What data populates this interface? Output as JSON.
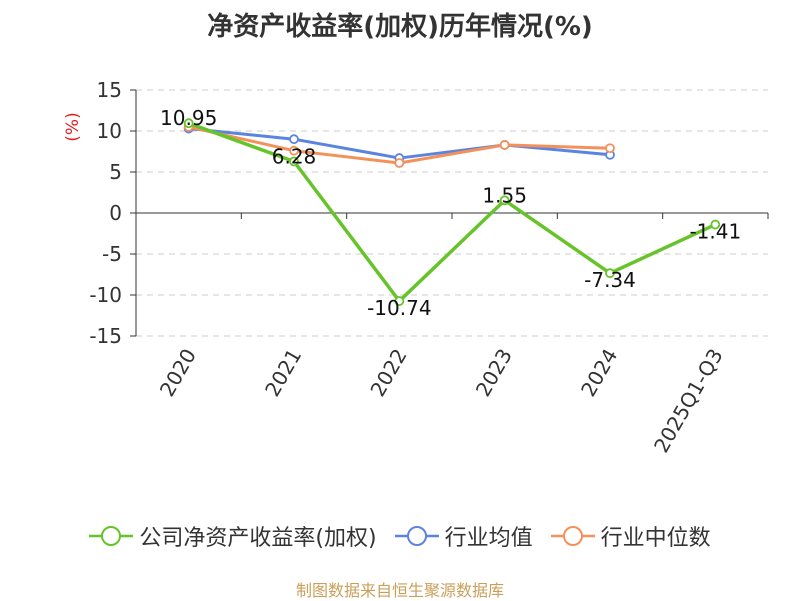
{
  "colors": {
    "company": "#66c42a",
    "industry_avg": "#5b84e0",
    "industry_median": "#f4915a",
    "axis": "#333333",
    "grid": "#cccccc",
    "ylabel": "#e02020",
    "source": "#c9a05a"
  },
  "chart_data": {
    "type": "line",
    "title": "净资产收益率(加权)历年情况(%)",
    "ylabel": "(%)",
    "xlabel": "",
    "categories": [
      "2020",
      "2021",
      "2022",
      "2023",
      "2024",
      "2025Q1-Q3"
    ],
    "ylim": [
      -15,
      15
    ],
    "yticks": [
      15,
      10,
      5,
      0,
      -5,
      -10,
      -15
    ],
    "grid": true,
    "legend_position": "bottom",
    "series": [
      {
        "key": "company",
        "name": "公司净资产收益率(加权)",
        "values": [
          10.95,
          6.28,
          -10.74,
          1.55,
          -7.34,
          -1.41
        ],
        "labels": [
          "10.95",
          "6.28",
          "-10.74",
          "1.55",
          "-7.34",
          "-1.41"
        ]
      },
      {
        "key": "industry_avg",
        "name": "行业均值",
        "values": [
          10.3,
          9.0,
          6.7,
          8.3,
          7.1,
          null
        ]
      },
      {
        "key": "industry_median",
        "name": "行业中位数",
        "values": [
          10.5,
          7.6,
          6.1,
          8.3,
          7.9,
          null
        ]
      }
    ]
  },
  "source": "制图数据来自恒生聚源数据库"
}
